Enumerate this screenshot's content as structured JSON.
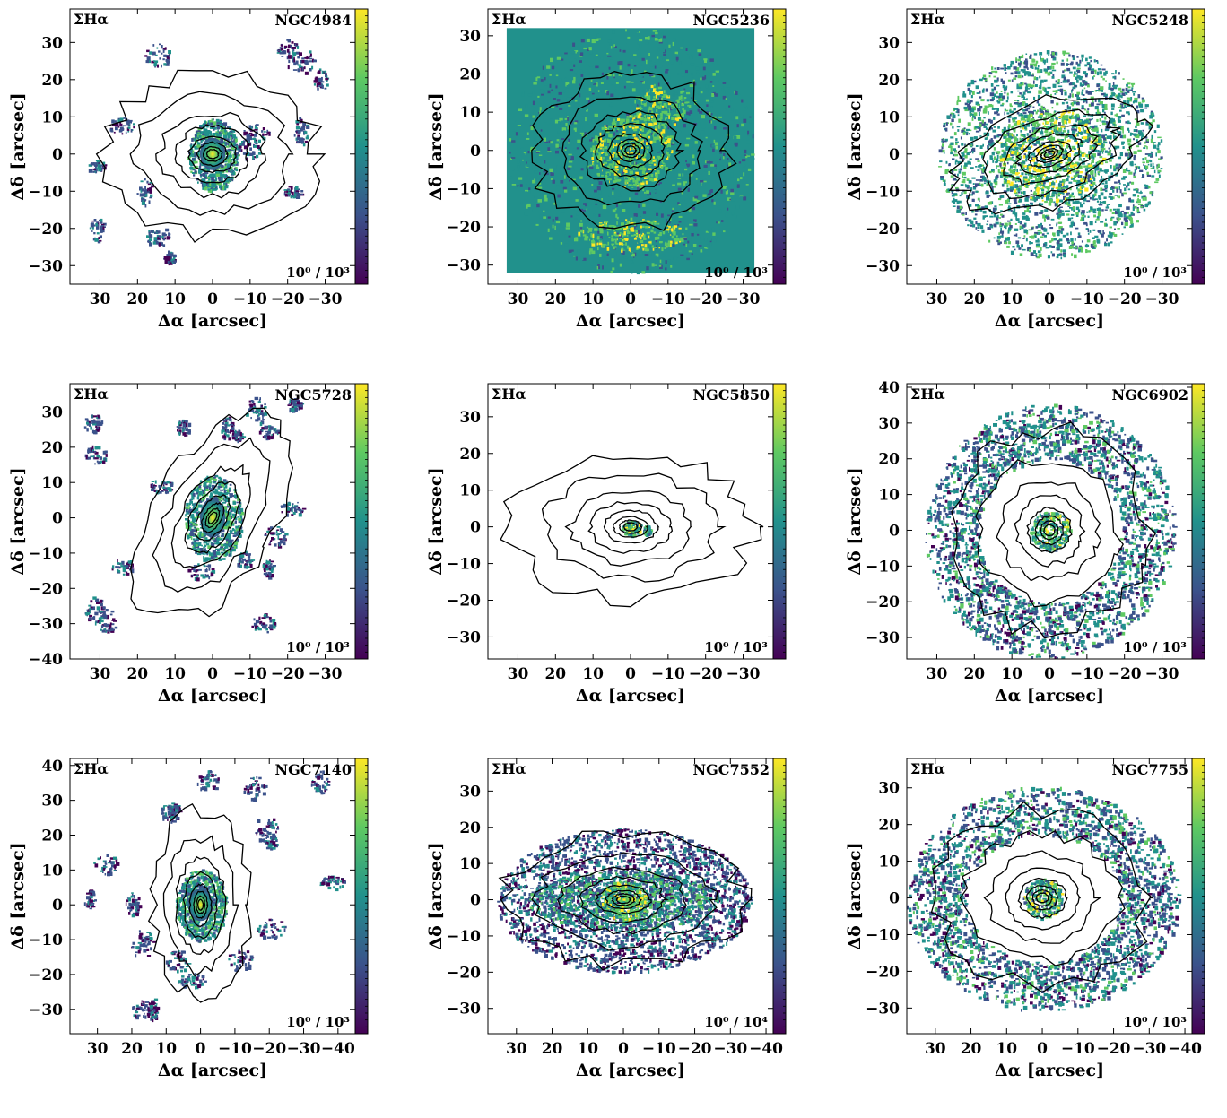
{
  "chart_data": {
    "type": "heatmap",
    "colormap": [
      "#440154",
      "#3b528b",
      "#21918c",
      "#5ec962",
      "#fde725"
    ],
    "contour_color": "#000000",
    "xlabel": "Δα [arcsec]",
    "ylabel": "Δδ [arcsec]",
    "panels": [
      {
        "name": "NGC4984",
        "quantity": "ΣHα",
        "scale_range": "10⁰ / 10³",
        "xlim": [
          38,
          -38
        ],
        "ylim": [
          -35,
          39
        ],
        "xticks": [
          30,
          20,
          10,
          0,
          -10,
          -20,
          -30
        ],
        "yticks": [
          -30,
          -20,
          -10,
          0,
          10,
          20,
          30
        ],
        "emission": "compact-center-arms",
        "ellipse": {
          "rx": 28,
          "ry": 22,
          "tilt": 0
        }
      },
      {
        "name": "NGC5236",
        "quantity": "ΣHα",
        "scale_range": "10⁰ / 10³",
        "xlim": [
          38,
          -38
        ],
        "ylim": [
          -35,
          37
        ],
        "xticks": [
          30,
          20,
          10,
          0,
          -10,
          -20,
          -30
        ],
        "yticks": [
          -30,
          -20,
          -10,
          0,
          10,
          20,
          30
        ],
        "emission": "full-field",
        "ellipse": {
          "rx": 26,
          "ry": 20,
          "tilt": 0
        }
      },
      {
        "name": "NGC5248",
        "quantity": "ΣHα",
        "scale_range": "10⁰ / 10³",
        "xlim": [
          38,
          -38
        ],
        "ylim": [
          -35,
          39
        ],
        "xticks": [
          30,
          20,
          10,
          0,
          -10,
          -20,
          -30
        ],
        "yticks": [
          -30,
          -20,
          -10,
          0,
          10,
          20,
          30
        ],
        "emission": "spiral-full",
        "ellipse": {
          "rx": 26,
          "ry": 14,
          "tilt": -20
        }
      },
      {
        "name": "NGC5728",
        "quantity": "ΣHα",
        "scale_range": "10⁰ / 10³",
        "xlim": [
          38,
          -38
        ],
        "ylim": [
          -40,
          38
        ],
        "xticks": [
          30,
          20,
          10,
          0,
          -10,
          -20,
          -30
        ],
        "yticks": [
          -40,
          -30,
          -20,
          -10,
          0,
          10,
          20,
          30
        ],
        "emission": "elongated-center",
        "ellipse": {
          "rx": 16,
          "ry": 32,
          "tilt": 30
        }
      },
      {
        "name": "NGC5850",
        "quantity": "ΣHα",
        "scale_range": "10⁰ / 10³",
        "xlim": [
          38,
          -38
        ],
        "ylim": [
          -36,
          39
        ],
        "xticks": [
          30,
          20,
          10,
          0,
          -10,
          -20,
          -30
        ],
        "yticks": [
          -30,
          -20,
          -10,
          0,
          10,
          20,
          30
        ],
        "emission": "nucleus-only",
        "ellipse": {
          "rx": 32,
          "ry": 20,
          "tilt": 0
        }
      },
      {
        "name": "NGC6902",
        "quantity": "ΣHα",
        "scale_range": "10⁰ / 10³",
        "xlim": [
          38,
          -38
        ],
        "ylim": [
          -36,
          41
        ],
        "xticks": [
          30,
          20,
          10,
          0,
          -10,
          -20,
          -30
        ],
        "yticks": [
          -30,
          -20,
          -10,
          0,
          10,
          20,
          30,
          40
        ],
        "emission": "ring",
        "ellipse": {
          "rx": 26,
          "ry": 28,
          "tilt": 20
        }
      },
      {
        "name": "NGC7140",
        "quantity": "ΣHα",
        "scale_range": "10⁰ / 10³",
        "xlim": [
          38,
          -45
        ],
        "ylim": [
          -37,
          42
        ],
        "xticks": [
          30,
          20,
          10,
          0,
          -10,
          -20,
          -30,
          -40
        ],
        "yticks": [
          -30,
          -20,
          -10,
          0,
          10,
          20,
          30,
          40
        ],
        "emission": "compact-center-sparse",
        "ellipse": {
          "rx": 14,
          "ry": 27,
          "tilt": 0
        }
      },
      {
        "name": "NGC7552",
        "quantity": "ΣHα",
        "scale_range": "10⁰ / 10⁴",
        "xlim": [
          38,
          -42
        ],
        "ylim": [
          -37,
          39
        ],
        "xticks": [
          30,
          20,
          10,
          0,
          -10,
          -20,
          -30,
          -40
        ],
        "yticks": [
          -30,
          -20,
          -10,
          0,
          10,
          20,
          30
        ],
        "emission": "bar-disk",
        "ellipse": {
          "rx": 34,
          "ry": 18,
          "tilt": 0
        }
      },
      {
        "name": "NGC7755",
        "quantity": "ΣHα",
        "scale_range": "10⁰ / 10³",
        "xlim": [
          38,
          -42
        ],
        "ylim": [
          -37,
          38
        ],
        "xticks": [
          30,
          20,
          10,
          0,
          -10,
          -20,
          -30,
          -40
        ],
        "yticks": [
          -30,
          -20,
          -10,
          0,
          10,
          20,
          30
        ],
        "emission": "ring",
        "ellipse": {
          "rx": 30,
          "ry": 24,
          "tilt": 0
        }
      }
    ]
  }
}
